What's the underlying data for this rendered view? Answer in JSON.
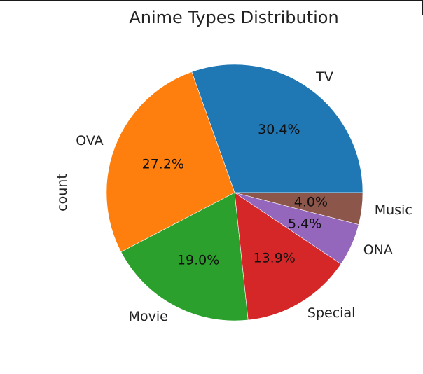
{
  "chart_data": {
    "type": "pie",
    "title": "Anime Types Distribution",
    "ylabel": "count",
    "start_angle_deg": 0,
    "direction": "counterclockwise",
    "slices": [
      {
        "label": "TV",
        "pct_label": "30.4%",
        "value": 30.4,
        "color": "#1f77b4"
      },
      {
        "label": "OVA",
        "pct_label": "27.2%",
        "value": 27.2,
        "color": "#ff7f0e"
      },
      {
        "label": "Movie",
        "pct_label": "19.0%",
        "value": 19.0,
        "color": "#2ca02c"
      },
      {
        "label": "Special",
        "pct_label": "13.9%",
        "value": 13.9,
        "color": "#d62728"
      },
      {
        "label": "ONA",
        "pct_label": "5.4%",
        "value": 5.4,
        "color": "#9467bd"
      },
      {
        "label": "Music",
        "pct_label": "4.0%",
        "value": 4.0,
        "color": "#8c564b"
      }
    ]
  }
}
